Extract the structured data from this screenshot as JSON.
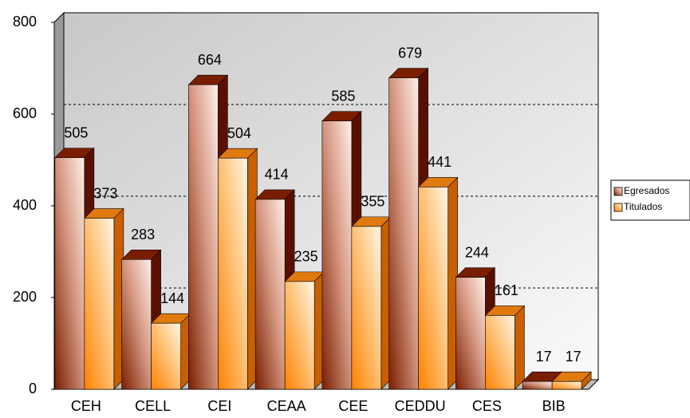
{
  "chart_data": {
    "type": "bar3d",
    "categories": [
      "CEH",
      "CELL",
      "CEI",
      "CEAA",
      "CEE",
      "CEDDU",
      "CES",
      "BIB"
    ],
    "series": [
      {
        "name": "Egresados",
        "color": "#8b2a0a",
        "values": [
          505,
          283,
          664,
          414,
          585,
          679,
          244,
          17
        ]
      },
      {
        "name": "Titulados",
        "color": "#ff8c1a",
        "values": [
          373,
          144,
          504,
          235,
          355,
          441,
          161,
          17
        ]
      }
    ],
    "ylim": [
      0,
      800
    ],
    "yticks": [
      0,
      200,
      400,
      600,
      800
    ],
    "grid": true,
    "legend": "right"
  }
}
